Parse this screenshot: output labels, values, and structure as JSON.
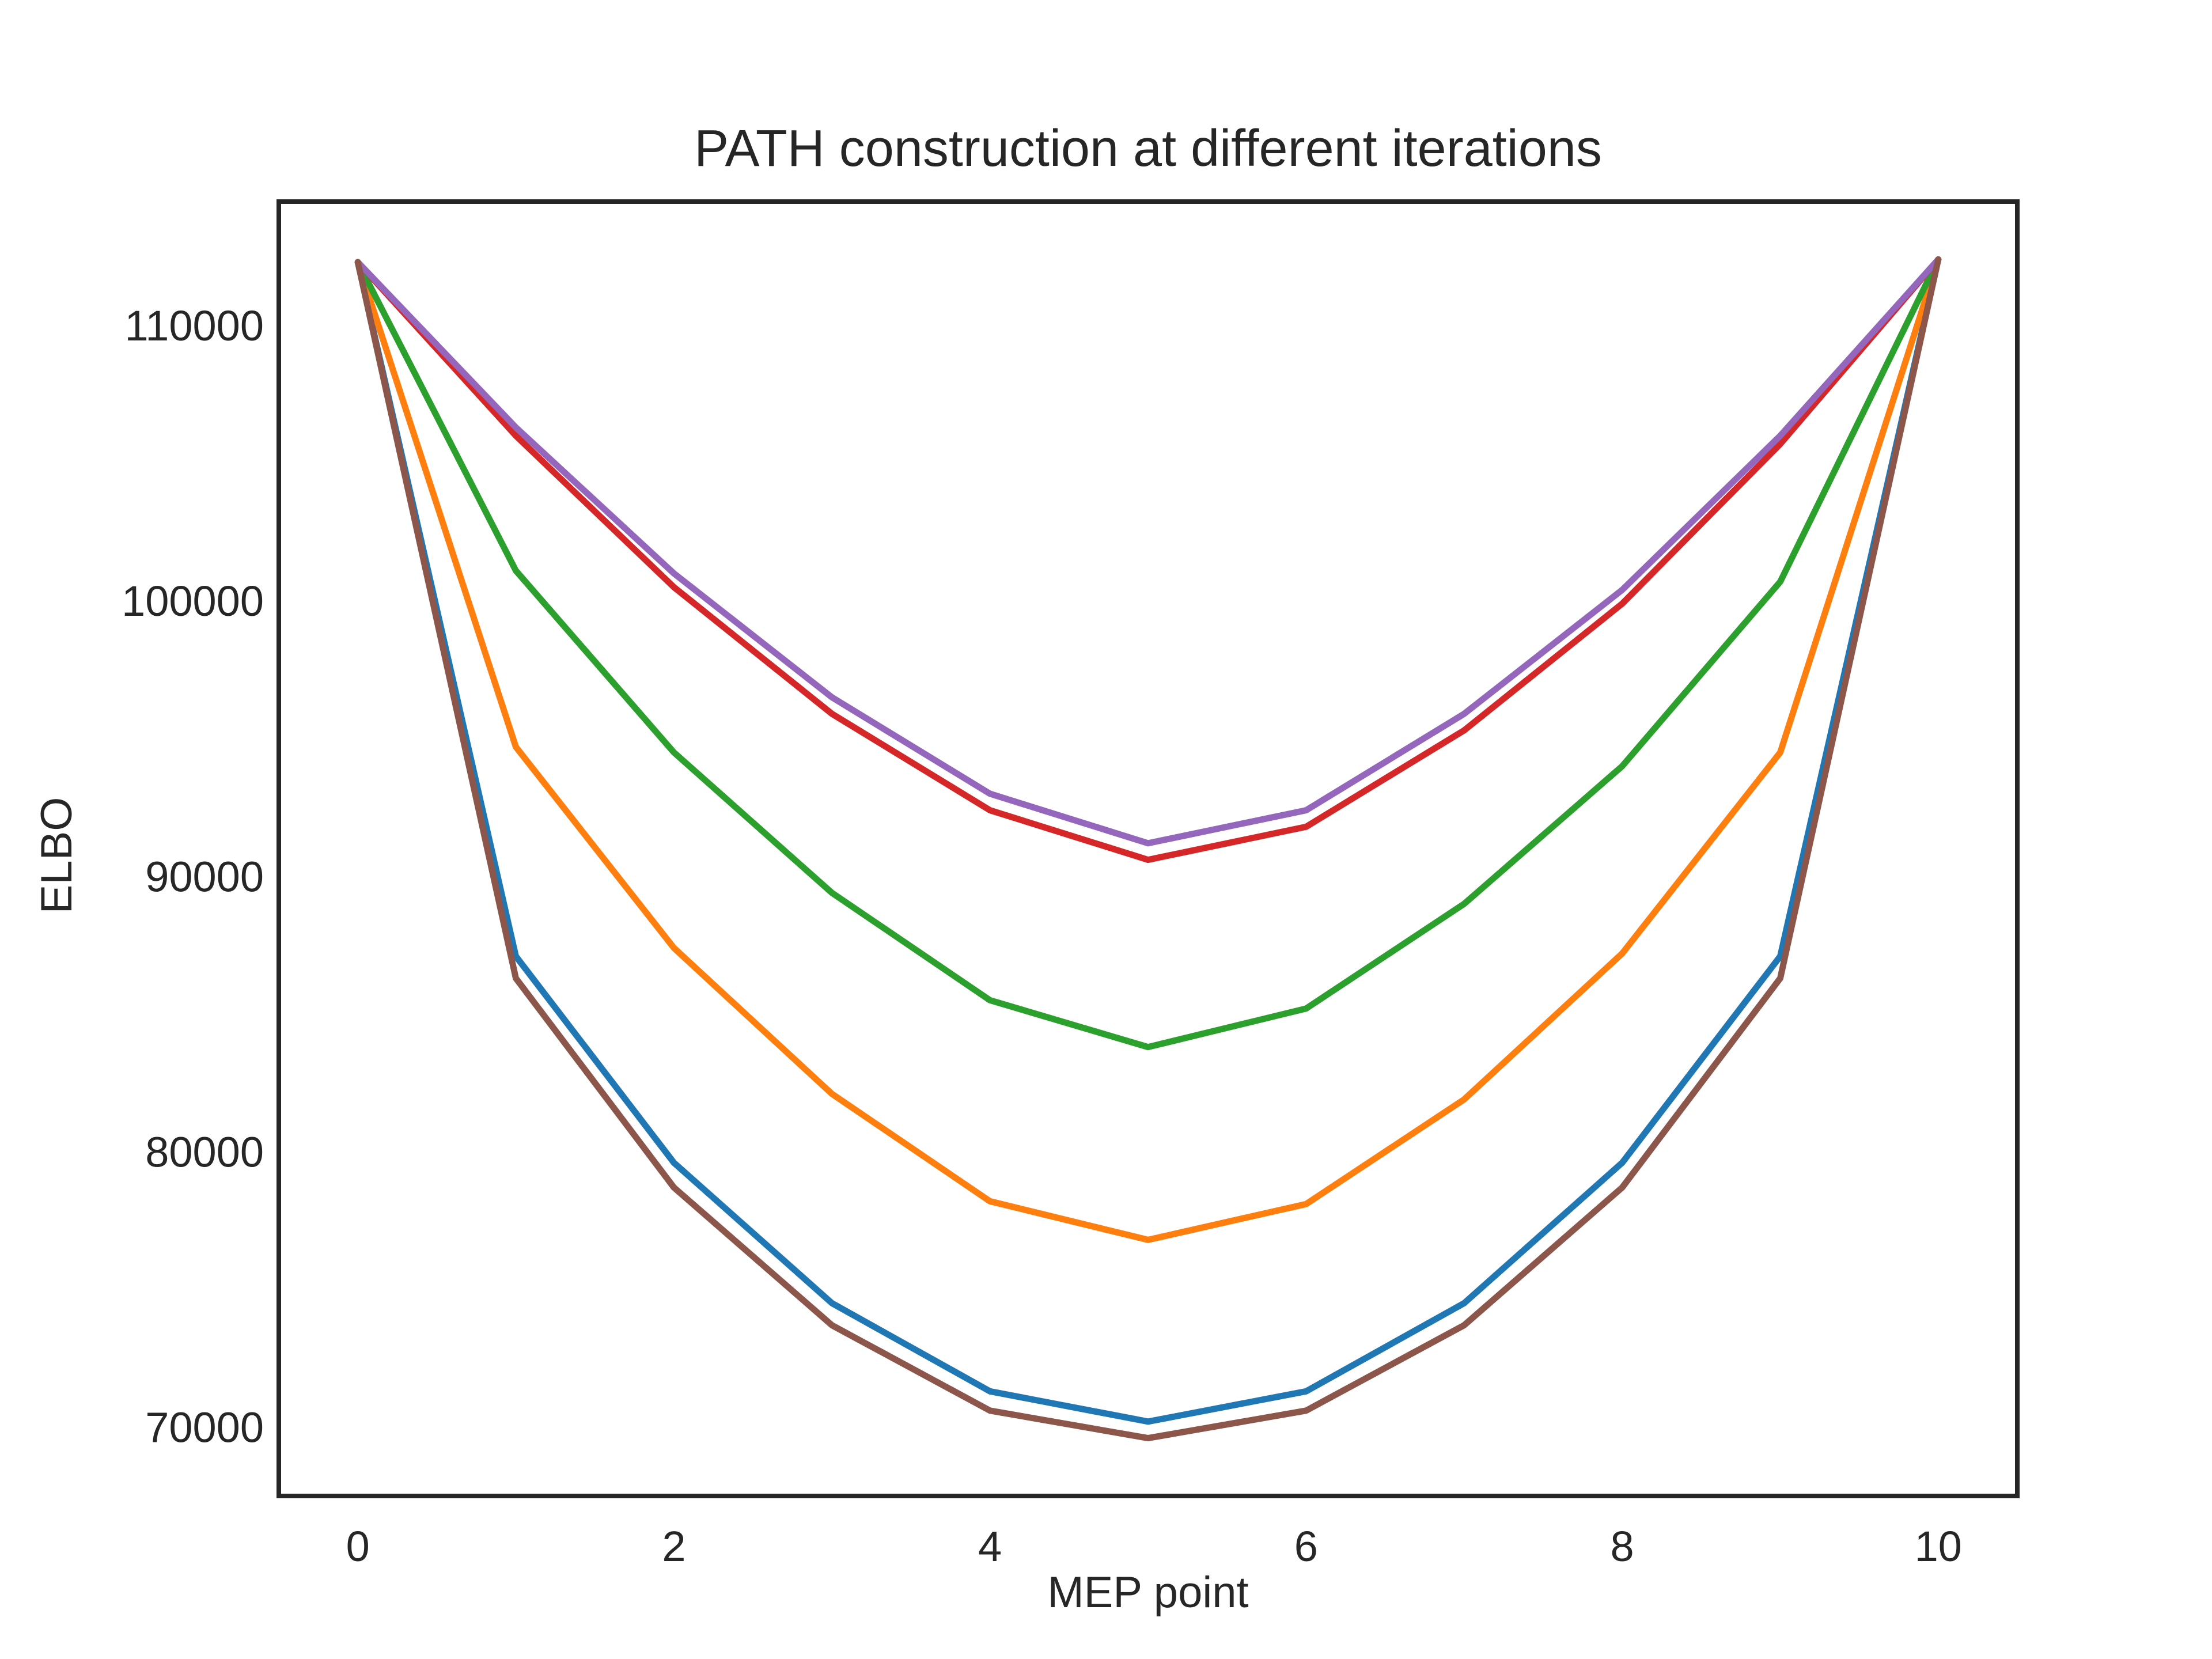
{
  "chart_data": {
    "type": "line",
    "title": "PATH construction at different iterations",
    "xlabel": "MEP point",
    "ylabel": "ELBO",
    "xlim": [
      -0.5,
      10.5
    ],
    "ylim": [
      67500,
      114500
    ],
    "xticks": [
      0,
      2,
      4,
      6,
      8,
      10
    ],
    "yticks": [
      70000,
      80000,
      90000,
      100000,
      110000
    ],
    "grid": false,
    "x": [
      0,
      1,
      2,
      3,
      4,
      5,
      6,
      7,
      8,
      9,
      10
    ],
    "series": [
      {
        "color": "#1f77b4",
        "values": [
          112300,
          87100,
          79600,
          74500,
          71300,
          70200,
          71300,
          74500,
          79600,
          87100,
          112400
        ]
      },
      {
        "color": "#ff7f0e",
        "values": [
          112300,
          94700,
          87400,
          82100,
          78200,
          76800,
          78100,
          81900,
          87200,
          94500,
          112400
        ]
      },
      {
        "color": "#2ca02c",
        "values": [
          112300,
          101100,
          94500,
          89400,
          85500,
          83800,
          85200,
          89000,
          94000,
          100700,
          112400
        ]
      },
      {
        "color": "#d62728",
        "values": [
          112300,
          106000,
          100500,
          95900,
          92400,
          90600,
          91800,
          95300,
          99900,
          105700,
          112400
        ]
      },
      {
        "color": "#9467bd",
        "values": [
          112300,
          106300,
          101000,
          96500,
          93000,
          91200,
          92400,
          95900,
          100400,
          106000,
          112400
        ]
      },
      {
        "color": "#8c564b",
        "values": [
          112300,
          86300,
          78700,
          73700,
          70600,
          69600,
          70600,
          73700,
          78700,
          86300,
          112400
        ]
      }
    ]
  }
}
